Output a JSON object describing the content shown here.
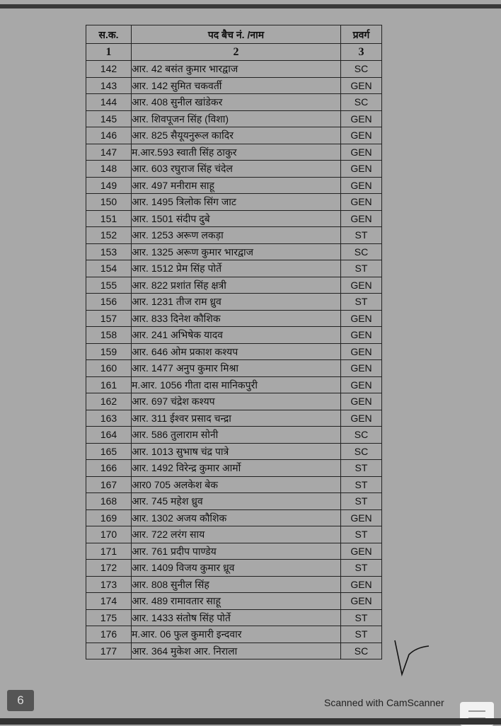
{
  "table": {
    "headers": [
      "स.क.",
      "पद बैच नं. /नाम",
      "प्रवर्ग"
    ],
    "column_numbers": [
      "1",
      "2",
      "3"
    ],
    "rows": [
      [
        "142",
        "आर. 42 बसंत कुमार भारद्वाज",
        "SC"
      ],
      [
        "143",
        "आर. 142 सुमित चकवर्ती",
        "GEN"
      ],
      [
        "144",
        "आर. 408 सुनील खांडेकर",
        "SC"
      ],
      [
        "145",
        "आर. शिवपूजन सिंह (विशा)",
        "GEN"
      ],
      [
        "146",
        "आर. 825 सैयूयनुरूल कादिर",
        "GEN"
      ],
      [
        "147",
        "म.आर.593 स्वाती सिंह ठाकुर",
        "GEN"
      ],
      [
        "148",
        "आर. 603 रघुराज सिंह चंदेल",
        "GEN"
      ],
      [
        "149",
        "आर. 497 मनीराम साहू",
        "GEN"
      ],
      [
        "150",
        "आर. 1495 त्रिलोक सिंग जाट",
        "GEN"
      ],
      [
        "151",
        "आर. 1501 संदीप दुबे",
        "GEN"
      ],
      [
        "152",
        "आर. 1253 अरूण लकड़ा",
        "ST"
      ],
      [
        "153",
        "आर. 1325 अरूण कुमार भारद्वाज",
        "SC"
      ],
      [
        "154",
        "आर. 1512 प्रेम सिंह पोर्ते",
        "ST"
      ],
      [
        "155",
        "आर. 822 प्रशांत सिंह क्षत्री",
        "GEN"
      ],
      [
        "156",
        "आर. 1231 तीज राम ध्रुव",
        "ST"
      ],
      [
        "157",
        "आर. 833 दिनेश कौशिक",
        "GEN"
      ],
      [
        "158",
        "आर. 241 अभिषेक यादव",
        "GEN"
      ],
      [
        "159",
        "आर. 646 ओम प्रकाश कश्यप",
        "GEN"
      ],
      [
        "160",
        "आर. 1477 अनुप कुमार मिश्रा",
        "GEN"
      ],
      [
        "161",
        "म.आर. 1056 गीता दास मानिकपुरी",
        "GEN"
      ],
      [
        "162",
        "आर. 697 चंद्रेश कश्यप",
        "GEN"
      ],
      [
        "163",
        "आर. 311 ईश्वर प्रसाद चन्द्रा",
        "GEN"
      ],
      [
        "164",
        "आर. 586 तुलाराम सोनी",
        "SC"
      ],
      [
        "165",
        "आर. 1013 सुभाष चंद्र पात्रे",
        "SC"
      ],
      [
        "166",
        "आर. 1492 विरेन्द्र कुमार आर्मो",
        "ST"
      ],
      [
        "167",
        "आर0 705 अलकेश बेक",
        "ST"
      ],
      [
        "168",
        "आर. 745 महेश ध्रुव",
        "ST"
      ],
      [
        "169",
        "आर. 1302 अजय कौशिक",
        "GEN"
      ],
      [
        "170",
        "आर. 722 लरंग साय",
        "ST"
      ],
      [
        "171",
        "आर. 761 प्रदीप पाण्डेय",
        "GEN"
      ],
      [
        "172",
        "आर. 1409 विजय कुमार ध्रूव",
        "ST"
      ],
      [
        "173",
        "आर. 808 सुनील सिंह",
        "GEN"
      ],
      [
        "174",
        "आर. 489 रामावतार साहू",
        "GEN"
      ],
      [
        "175",
        "आर. 1433 संतोष सिंह पोर्ते",
        "ST"
      ],
      [
        "176",
        "म.आर. 06 फुल कुमारी इन्दवार",
        "ST"
      ],
      [
        "177",
        "आर. 364 मुकेश आर. निराला",
        "SC"
      ]
    ]
  },
  "footer": {
    "page_number": "6",
    "watermark": "Scanned with CamScanner",
    "menu_icon": "hamburger-menu-icon"
  },
  "colors": {
    "background": "#a8a8a8",
    "ink": "#111111"
  }
}
